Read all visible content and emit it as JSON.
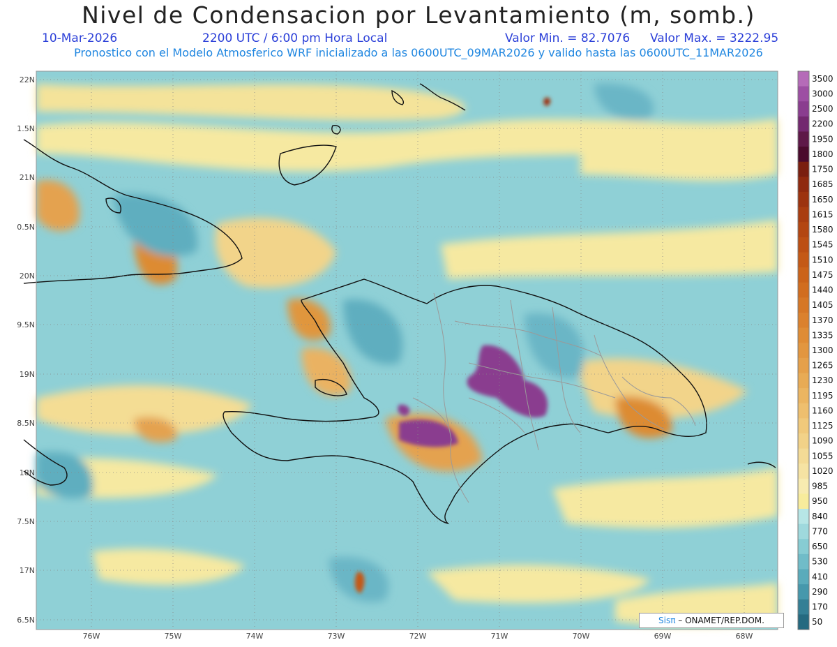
{
  "header": {
    "title": "Nivel de Condensacion por Levantamiento (m, somb.)",
    "date": "10-Mar-2026",
    "time": "2200 UTC / 6:00 pm Hora Local",
    "min_label": "Valor Min. = 82.7076",
    "max_label": "Valor Max. = 3222.95",
    "model_info": "Pronostico con el Modelo Atmosferico WRF inicializado a las 0600UTC_09MAR2026 y valido hasta las  0600UTC_11MAR2026"
  },
  "axes": {
    "lat_labels": [
      "22N",
      "1.5N",
      "21N",
      "0.5N",
      "20N",
      "9.5N",
      "19N",
      "8.5N",
      "18N",
      "7.5N",
      "17N",
      "6.5N"
    ],
    "lon_labels": [
      "76W",
      "75W",
      "74W",
      "73W",
      "72W",
      "71W",
      "70W",
      "69W",
      "68W"
    ]
  },
  "colorbar": {
    "labels": [
      "3500",
      "3000",
      "2500",
      "2200",
      "1950",
      "1800",
      "1750",
      "1685",
      "1650",
      "1615",
      "1580",
      "1545",
      "1510",
      "1475",
      "1440",
      "1405",
      "1370",
      "1335",
      "1300",
      "1265",
      "1230",
      "1195",
      "1160",
      "1125",
      "1090",
      "1055",
      "1020",
      "985",
      "950",
      "840",
      "770",
      "650",
      "530",
      "410",
      "290",
      "170",
      "50"
    ],
    "colors": [
      "#b56bb8",
      "#9d4fa3",
      "#8a3d8f",
      "#73286f",
      "#5e1848",
      "#4a0a2c",
      "#7a1f10",
      "#8f2a0f",
      "#9c330f",
      "#a93d10",
      "#b34611",
      "#bc4f13",
      "#c45916",
      "#cb631a",
      "#d16d1f",
      "#d67726",
      "#db812d",
      "#df8c35",
      "#e2963f",
      "#e5a04a",
      "#e8ab55",
      "#ebb561",
      "#eebf6e",
      "#f0c97b",
      "#f2d288",
      "#f4db96",
      "#f6e3a3",
      "#f8ebb0",
      "#f8ec9c",
      "#b7e6e6",
      "#9fd9dd",
      "#87ccd3",
      "#70bcc8",
      "#5aabbb",
      "#4698ac",
      "#347f95",
      "#256a80"
    ]
  },
  "credit": {
    "sis": "Sisπ",
    "org": "– ONAMET/REP.DOM."
  },
  "legend_colors": {
    "ocean_mid": "#8fd0d6",
    "land_line": "#111111",
    "province_line": "#9a9a9a"
  }
}
